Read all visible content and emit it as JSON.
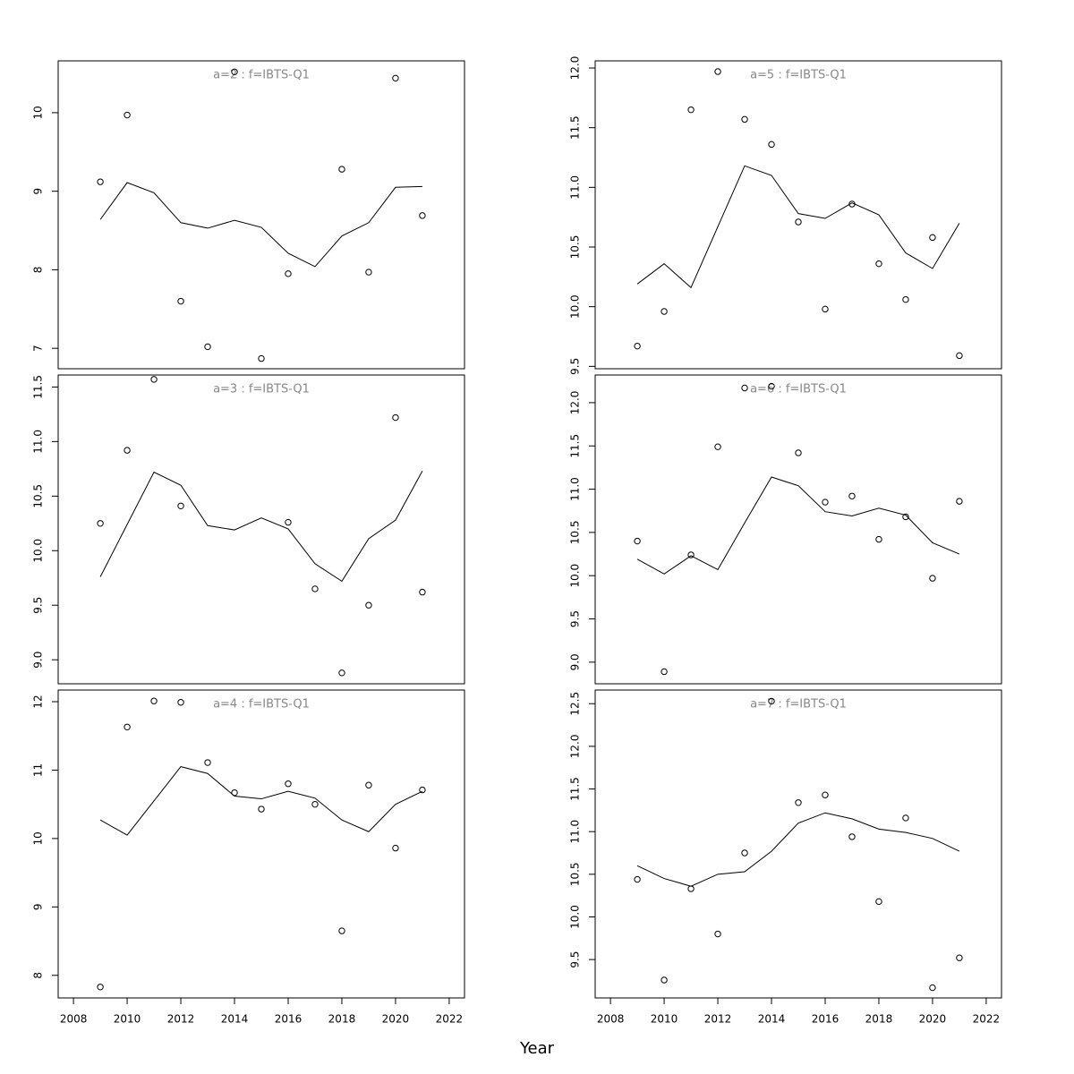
{
  "xlabel": "Year",
  "chart_data": [
    {
      "type": "line",
      "title": "a=2 : f=IBTS-Q1",
      "x": [
        2009,
        2010,
        2011,
        2012,
        2013,
        2014,
        2015,
        2016,
        2017,
        2018,
        2019,
        2020,
        2021
      ],
      "xlim": [
        2007.43,
        2022.57
      ],
      "ylim": [
        6.74,
        10.66
      ],
      "yticks": [
        7,
        8,
        9,
        10
      ],
      "series": [
        {
          "mode": "markers",
          "color": "#000000",
          "values": [
            9.12,
            9.97,
            null,
            7.6,
            7.02,
            10.52,
            6.87,
            7.95,
            null,
            9.28,
            7.97,
            10.44,
            8.69
          ]
        },
        {
          "mode": "lines",
          "color": "#000000",
          "values": [
            8.64,
            9.11,
            8.98,
            8.6,
            8.53,
            8.63,
            8.54,
            8.21,
            8.04,
            8.43,
            8.6,
            9.05,
            9.06
          ]
        }
      ]
    },
    {
      "type": "line",
      "title": "a=3 : f=IBTS-Q1",
      "x": [
        2009,
        2010,
        2011,
        2012,
        2013,
        2014,
        2015,
        2016,
        2017,
        2018,
        2019,
        2020,
        2021
      ],
      "xlim": [
        2007.43,
        2022.57
      ],
      "ylim": [
        8.78,
        11.61
      ],
      "yticks": [
        {
          "value": 9,
          "label": "9.0"
        },
        9.5,
        {
          "value": 10,
          "label": "10.0"
        },
        10.5,
        {
          "value": 11,
          "label": "11.0"
        },
        11.5
      ],
      "series": [
        {
          "mode": "markers",
          "color": "#000000",
          "values": [
            10.25,
            10.92,
            11.57,
            10.41,
            null,
            null,
            null,
            10.26,
            9.65,
            8.88,
            9.5,
            11.22,
            9.62
          ]
        },
        {
          "mode": "lines",
          "color": "#000000",
          "values": [
            9.76,
            10.24,
            10.72,
            10.6,
            10.23,
            10.19,
            10.3,
            10.2,
            9.88,
            9.72,
            10.11,
            10.28,
            10.73
          ]
        }
      ]
    },
    {
      "type": "line",
      "title": "a=4 : f=IBTS-Q1",
      "x": [
        2009,
        2010,
        2011,
        2012,
        2013,
        2014,
        2015,
        2016,
        2017,
        2018,
        2019,
        2020,
        2021
      ],
      "xlim": [
        2007.43,
        2022.57
      ],
      "xticks": [
        2008,
        2010,
        2012,
        2014,
        2016,
        2018,
        2020,
        2022
      ],
      "ylim": [
        7.67,
        12.17
      ],
      "yticks": [
        8,
        9,
        10,
        11,
        12
      ],
      "series": [
        {
          "mode": "markers",
          "color": "#000000",
          "values": [
            7.83,
            11.63,
            12.01,
            11.99,
            11.11,
            10.67,
            10.43,
            10.8,
            10.5,
            8.65,
            10.78,
            9.86,
            10.71
          ]
        },
        {
          "mode": "lines",
          "color": "#000000",
          "values": [
            10.27,
            10.05,
            10.55,
            11.05,
            10.95,
            10.62,
            10.58,
            10.69,
            10.59,
            10.27,
            10.1,
            10.5,
            10.69
          ]
        }
      ]
    },
    {
      "type": "line",
      "title": "a=5 : f=IBTS-Q1",
      "x": [
        2009,
        2010,
        2011,
        2012,
        2013,
        2014,
        2015,
        2016,
        2017,
        2018,
        2019,
        2020,
        2021
      ],
      "xlim": [
        2007.43,
        2022.57
      ],
      "ylim": [
        9.48,
        12.06
      ],
      "yticks": [
        9.5,
        {
          "value": 10,
          "label": "10.0"
        },
        10.5,
        {
          "value": 11,
          "label": "11.0"
        },
        11.5,
        {
          "value": 12,
          "label": "12.0"
        }
      ],
      "series": [
        {
          "mode": "markers",
          "color": "#000000",
          "values": [
            9.67,
            9.96,
            11.65,
            11.97,
            11.57,
            11.36,
            10.71,
            9.98,
            10.86,
            10.36,
            10.06,
            10.58,
            9.59
          ]
        },
        {
          "mode": "lines",
          "color": "#000000",
          "values": [
            10.19,
            10.36,
            10.16,
            10.67,
            11.18,
            11.1,
            10.78,
            10.74,
            10.87,
            10.77,
            10.45,
            10.32,
            10.7
          ]
        }
      ]
    },
    {
      "type": "line",
      "title": "a=6 : f=IBTS-Q1",
      "x": [
        2009,
        2010,
        2011,
        2012,
        2013,
        2014,
        2015,
        2016,
        2017,
        2018,
        2019,
        2020,
        2021
      ],
      "xlim": [
        2007.43,
        2022.57
      ],
      "ylim": [
        8.75,
        12.32
      ],
      "yticks": [
        {
          "value": 9,
          "label": "9.0"
        },
        9.5,
        {
          "value": 10,
          "label": "10.0"
        },
        10.5,
        {
          "value": 11,
          "label": "11.0"
        },
        11.5,
        {
          "value": 12,
          "label": "12.0"
        }
      ],
      "series": [
        {
          "mode": "markers",
          "color": "#000000",
          "values": [
            10.4,
            8.89,
            10.24,
            11.49,
            12.17,
            12.19,
            11.42,
            10.85,
            10.92,
            10.42,
            10.68,
            9.97,
            10.86
          ]
        },
        {
          "mode": "lines",
          "color": "#000000",
          "values": [
            10.19,
            10.02,
            10.23,
            10.07,
            10.61,
            11.14,
            11.04,
            10.74,
            10.69,
            10.78,
            10.7,
            10.38,
            10.25
          ]
        }
      ]
    },
    {
      "type": "line",
      "title": "a=7 : f=IBTS-Q1",
      "x": [
        2009,
        2010,
        2011,
        2012,
        2013,
        2014,
        2015,
        2016,
        2017,
        2018,
        2019,
        2020,
        2021
      ],
      "xlim": [
        2007.43,
        2022.57
      ],
      "xticks": [
        2008,
        2010,
        2012,
        2014,
        2016,
        2018,
        2020,
        2022
      ],
      "ylim": [
        9.05,
        12.66
      ],
      "yticks": [
        9.5,
        {
          "value": 10,
          "label": "10.0"
        },
        10.5,
        {
          "value": 11,
          "label": "11.0"
        },
        11.5,
        {
          "value": 12,
          "label": "12.0"
        },
        12.5
      ],
      "series": [
        {
          "mode": "markers",
          "color": "#000000",
          "values": [
            10.44,
            9.26,
            10.33,
            9.8,
            10.75,
            12.53,
            11.34,
            11.43,
            10.94,
            10.18,
            11.16,
            9.17,
            9.52
          ]
        },
        {
          "mode": "lines",
          "color": "#000000",
          "values": [
            10.6,
            10.45,
            10.36,
            10.5,
            10.53,
            10.77,
            11.1,
            11.22,
            11.15,
            11.03,
            10.99,
            10.92,
            10.77
          ]
        }
      ]
    }
  ]
}
